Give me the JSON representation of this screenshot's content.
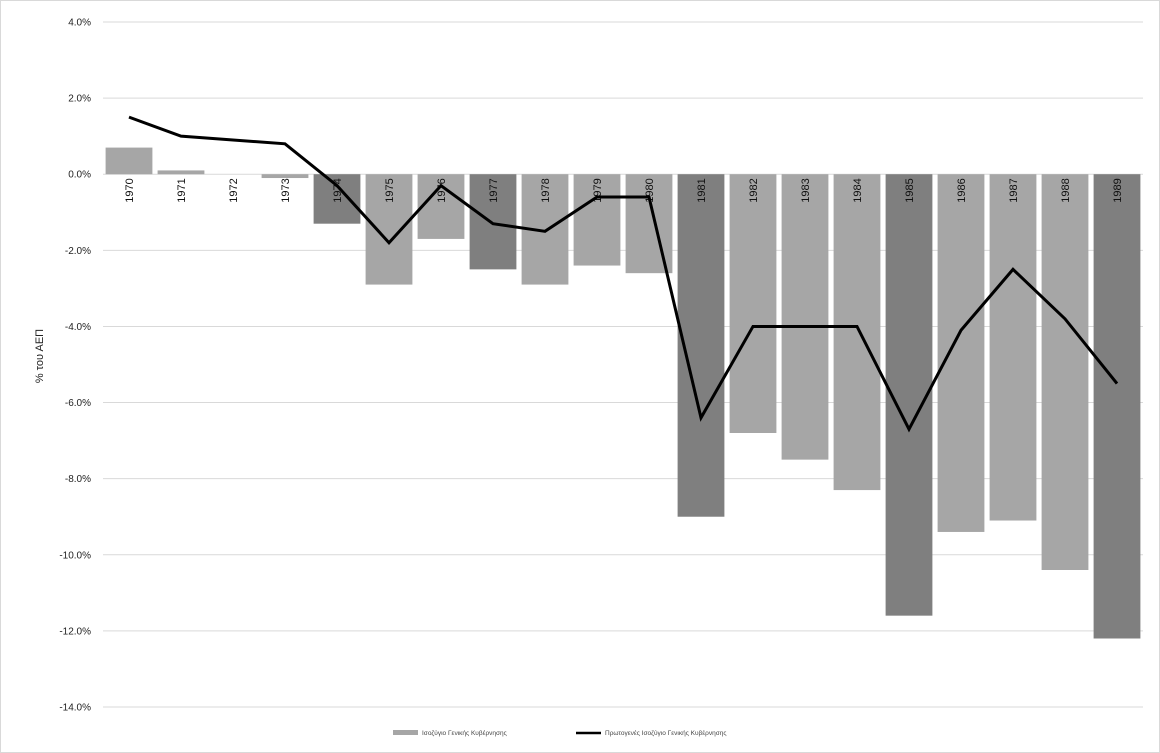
{
  "chart_data": {
    "type": "bar",
    "categories": [
      "1970",
      "1971",
      "1972",
      "1973",
      "1974",
      "1975",
      "1976",
      "1977",
      "1978",
      "1979",
      "1980",
      "1981",
      "1982",
      "1983",
      "1984",
      "1985",
      "1986",
      "1987",
      "1988",
      "1989"
    ],
    "series": [
      {
        "name": "Ισοζύγιο Γενικής Κυβέρνησης",
        "kind": "bar",
        "values": [
          0.7,
          0.1,
          0.0,
          -0.1,
          -1.3,
          -2.9,
          -1.7,
          -2.5,
          -2.9,
          -2.4,
          -2.6,
          -9.0,
          -6.8,
          -7.5,
          -8.3,
          -11.6,
          -9.4,
          -9.1,
          -10.4,
          -12.2
        ],
        "highlighted_years": [
          "1974",
          "1977",
          "1981",
          "1985",
          "1989"
        ],
        "color": "#a6a6a6",
        "highlight_color": "#7f7f7f"
      },
      {
        "name": "Πρωτογενές Ισοζύγιο Γενικής Κυβέρνησης",
        "kind": "line",
        "values": [
          1.5,
          1.0,
          0.9,
          0.8,
          -0.3,
          -1.8,
          -0.3,
          -1.3,
          -1.5,
          -0.6,
          -0.6,
          -6.4,
          -4.0,
          -4.0,
          -4.0,
          -6.7,
          -4.1,
          -2.5,
          -3.8,
          -5.5
        ],
        "color": "#000000"
      }
    ],
    "title": "",
    "xlabel": "",
    "ylabel": "% του ΑΕΠ",
    "ylim": [
      -14,
      4
    ],
    "y_ticks": [
      "4.0%",
      "2.0%",
      "0.0%",
      "-2.0%",
      "-4.0%",
      "-6.0%",
      "-8.0%",
      "-10.0%",
      "-12.0%",
      "-14.0%"
    ],
    "y_tick_values": [
      4,
      2,
      0,
      -2,
      -4,
      -6,
      -8,
      -10,
      -12,
      -14
    ],
    "grid": true,
    "legend_position": "bottom"
  }
}
